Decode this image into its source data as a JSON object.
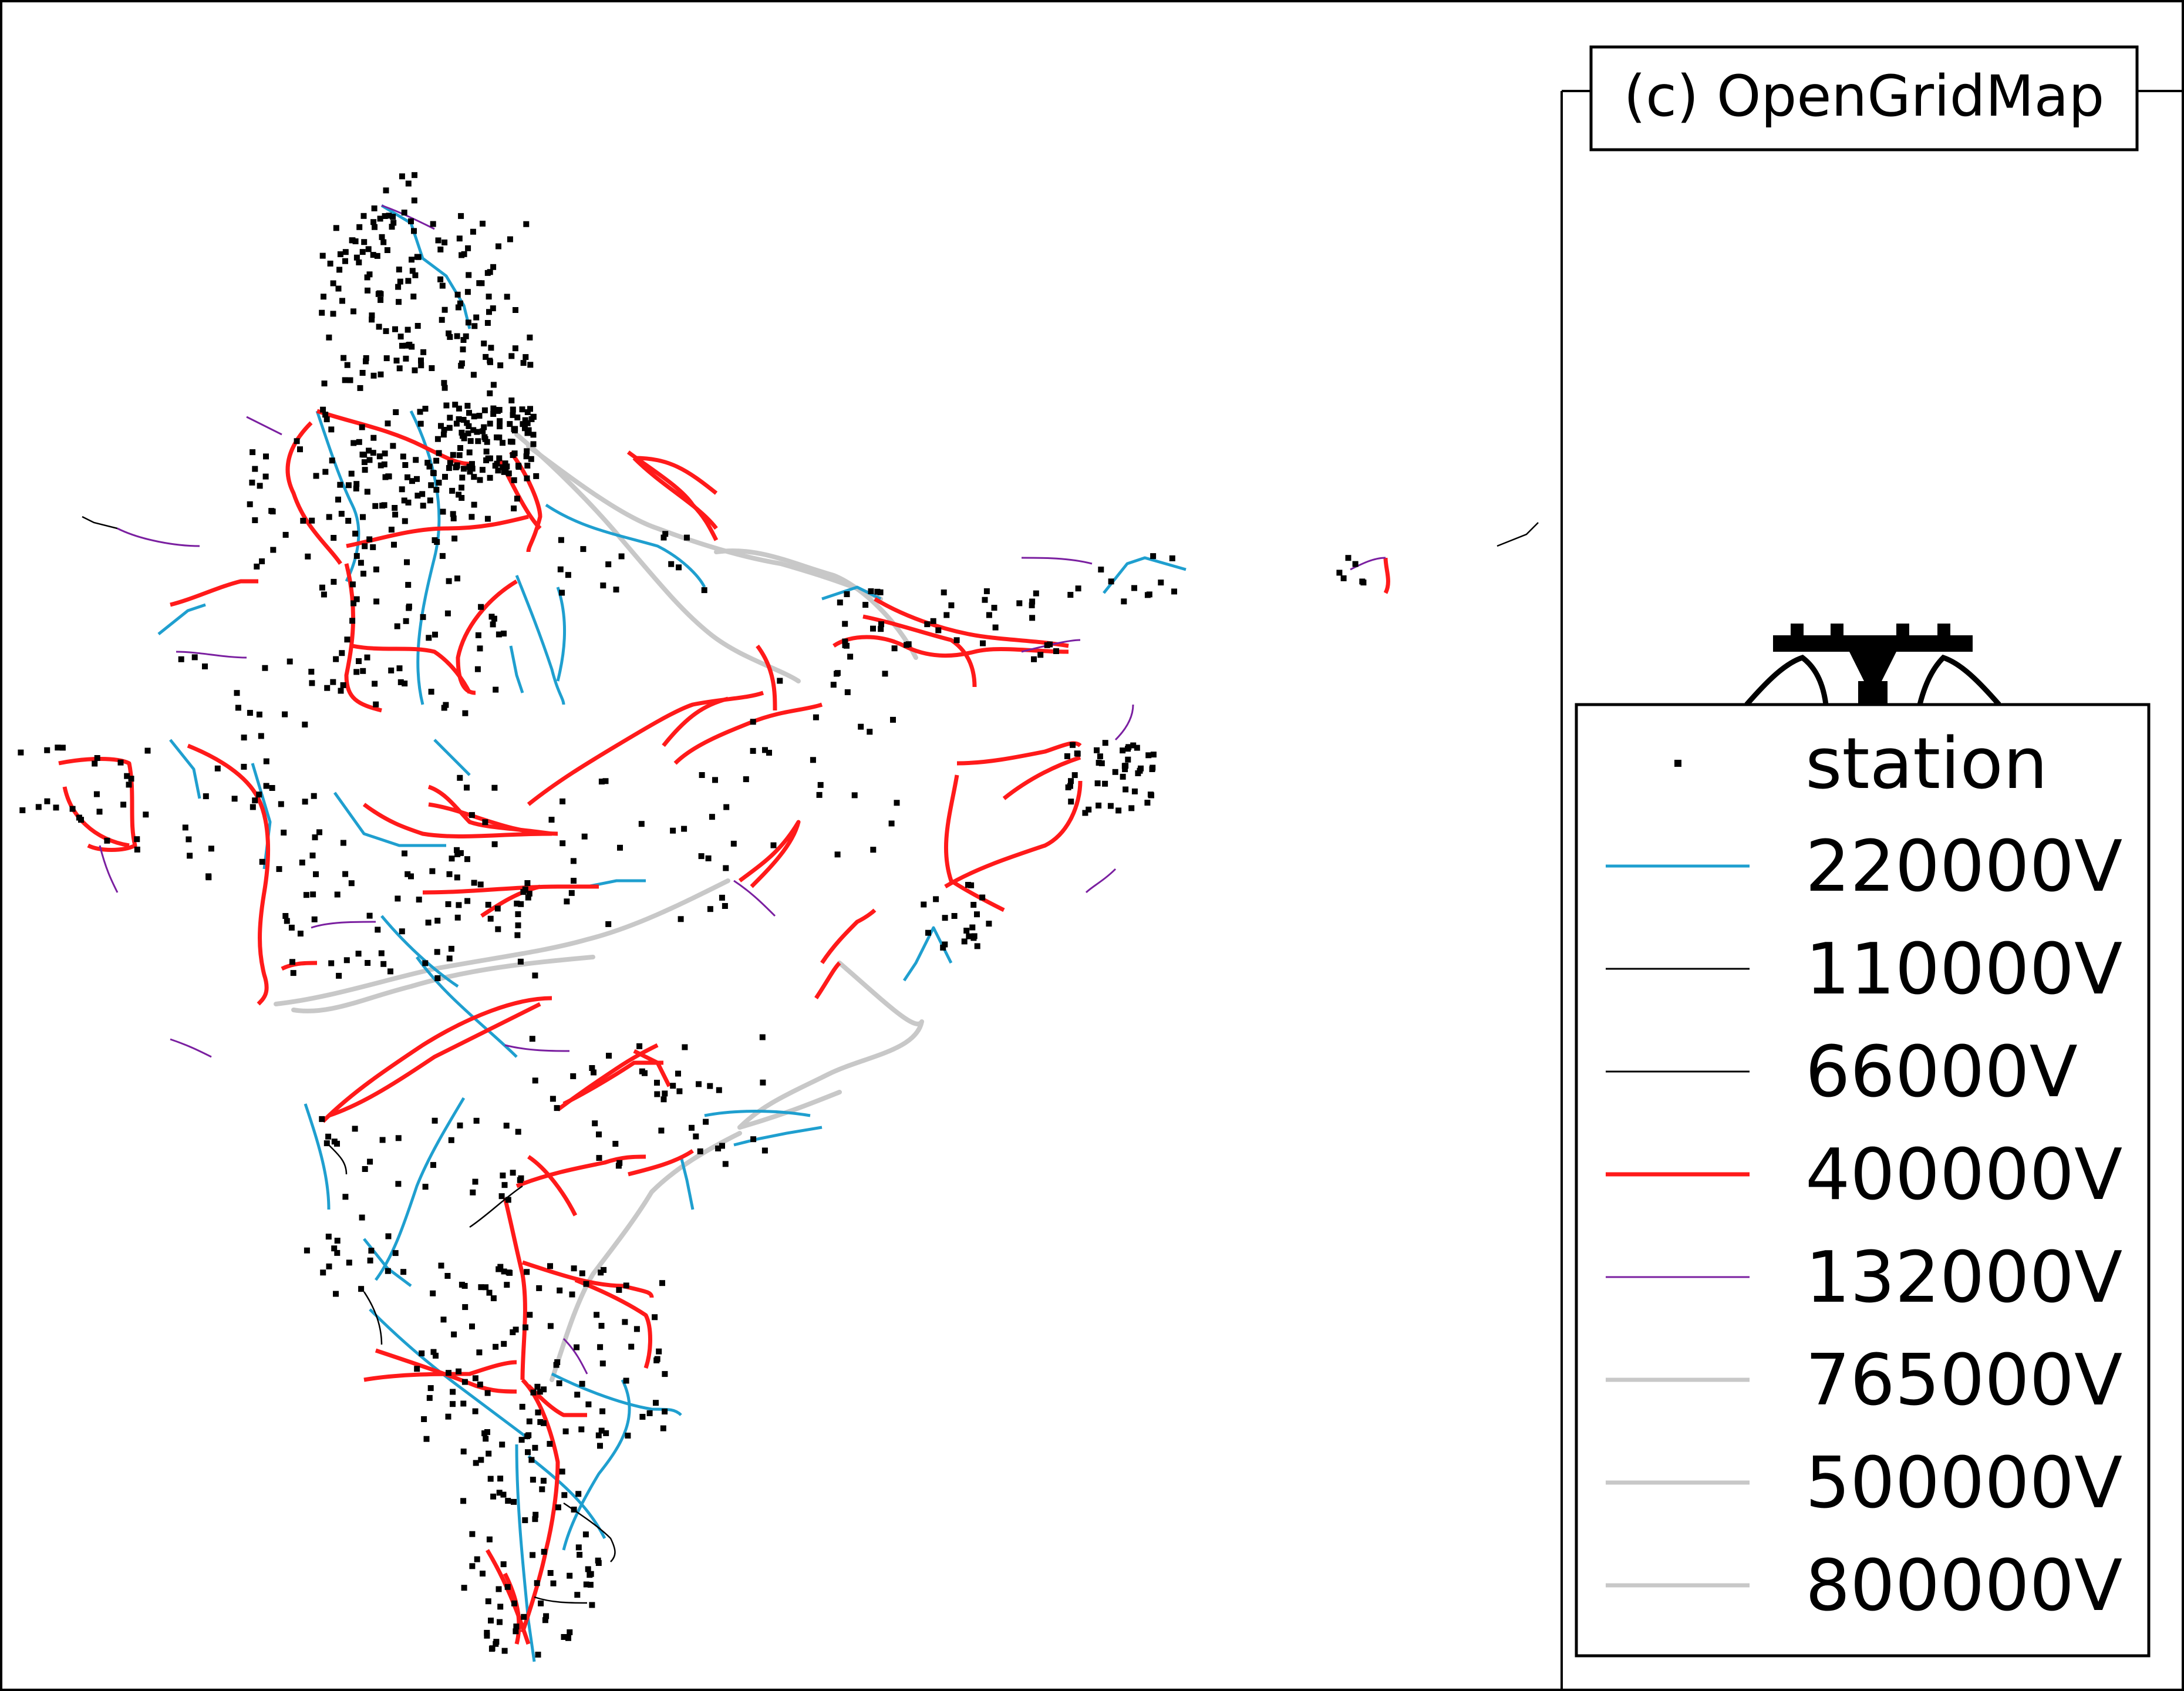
{
  "credit": "(c) OpenGridMap",
  "legend": {
    "items": [
      {
        "label": "station",
        "kind": "marker",
        "color": "#000000"
      },
      {
        "label": "220000V",
        "kind": "line",
        "color": "#1f9fcf",
        "width": 5
      },
      {
        "label": "110000V",
        "kind": "line",
        "color": "#000000",
        "width": 3
      },
      {
        "label": "66000V",
        "kind": "line",
        "color": "#000000",
        "width": 3
      },
      {
        "label": "400000V",
        "kind": "line",
        "color": "#ff1a1a",
        "width": 7
      },
      {
        "label": "132000V",
        "kind": "line",
        "color": "#7a1fa0",
        "width": 3
      },
      {
        "label": "765000V",
        "kind": "line",
        "color": "#c8c8c8",
        "width": 7
      },
      {
        "label": "500000V",
        "kind": "line",
        "color": "#c8c8c8",
        "width": 7
      },
      {
        "label": "800000V",
        "kind": "line",
        "color": "#c8c8c8",
        "width": 7
      }
    ]
  },
  "network": {
    "line_colors": {
      "220kv": "#1f9fcf",
      "110kv": "#000000",
      "400kv": "#ff1a1a",
      "132kv": "#7a1fa0",
      "765kv": "#c8c8c8"
    }
  }
}
